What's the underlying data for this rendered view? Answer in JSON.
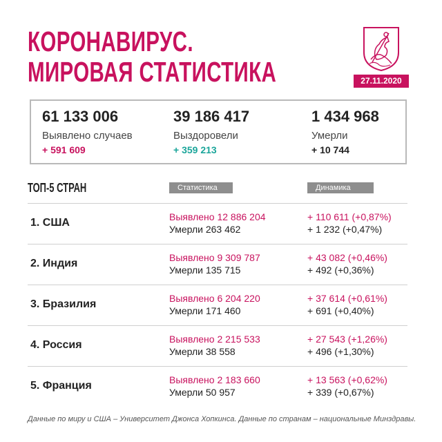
{
  "header": {
    "title_line1": "КОРОНАВИРУС.",
    "title_line2": "МИРОВАЯ СТАТИСТИКА",
    "date": "27.11.2020",
    "accent_color": "#c8125e"
  },
  "world": {
    "cases": {
      "value": "61 133 006",
      "label": "Выявлено случаев",
      "delta": "+ 591 609"
    },
    "recovered": {
      "value": "39 186 417",
      "label": "Выздоровели",
      "delta": "+ 359 213"
    },
    "deaths": {
      "value": "1 434 968",
      "label": "Умерли",
      "delta": "+ 10 744"
    }
  },
  "top5": {
    "title": "ТОП-5 СТРАН",
    "col_stats": "Статистика",
    "col_dynamics": "Динамика",
    "rows": [
      {
        "country": "1. США",
        "cases": "Выявлено 12 886 204",
        "deaths": "Умерли 263 462",
        "cases_delta": "+ 110 611 (+0,87%)",
        "deaths_delta": "+ 1 232 (+0,47%)"
      },
      {
        "country": "2. Индия",
        "cases": "Выявлено 9 309 787",
        "deaths": "Умерли 135 715",
        "cases_delta": "+ 43 082 (+0,46%)",
        "deaths_delta": "+ 492 (+0,36%)"
      },
      {
        "country": "3. Бразилия",
        "cases": "Выявлено 6 204 220",
        "deaths": "Умерли 171 460",
        "cases_delta": "+ 37 614 (+0,61%)",
        "deaths_delta": "+ 691 (+0,40%)"
      },
      {
        "country": "4. Россия",
        "cases": "Выявлено 2 215 533",
        "deaths": "Умерли 38 558",
        "cases_delta": "+ 27 543 (+1,26%)",
        "deaths_delta": "+ 496 (+1,30%)"
      },
      {
        "country": "5. Франция",
        "cases": "Выявлено 2 183 660",
        "deaths": "Умерли 50 957",
        "cases_delta": "+ 13 563 (+0,62%)",
        "deaths_delta": "+ 339 (+0,67%)"
      }
    ]
  },
  "footnote": "Данные по миру и США – Университет Джонса Хопкинса. Данные по странам – национальные Минздравы."
}
